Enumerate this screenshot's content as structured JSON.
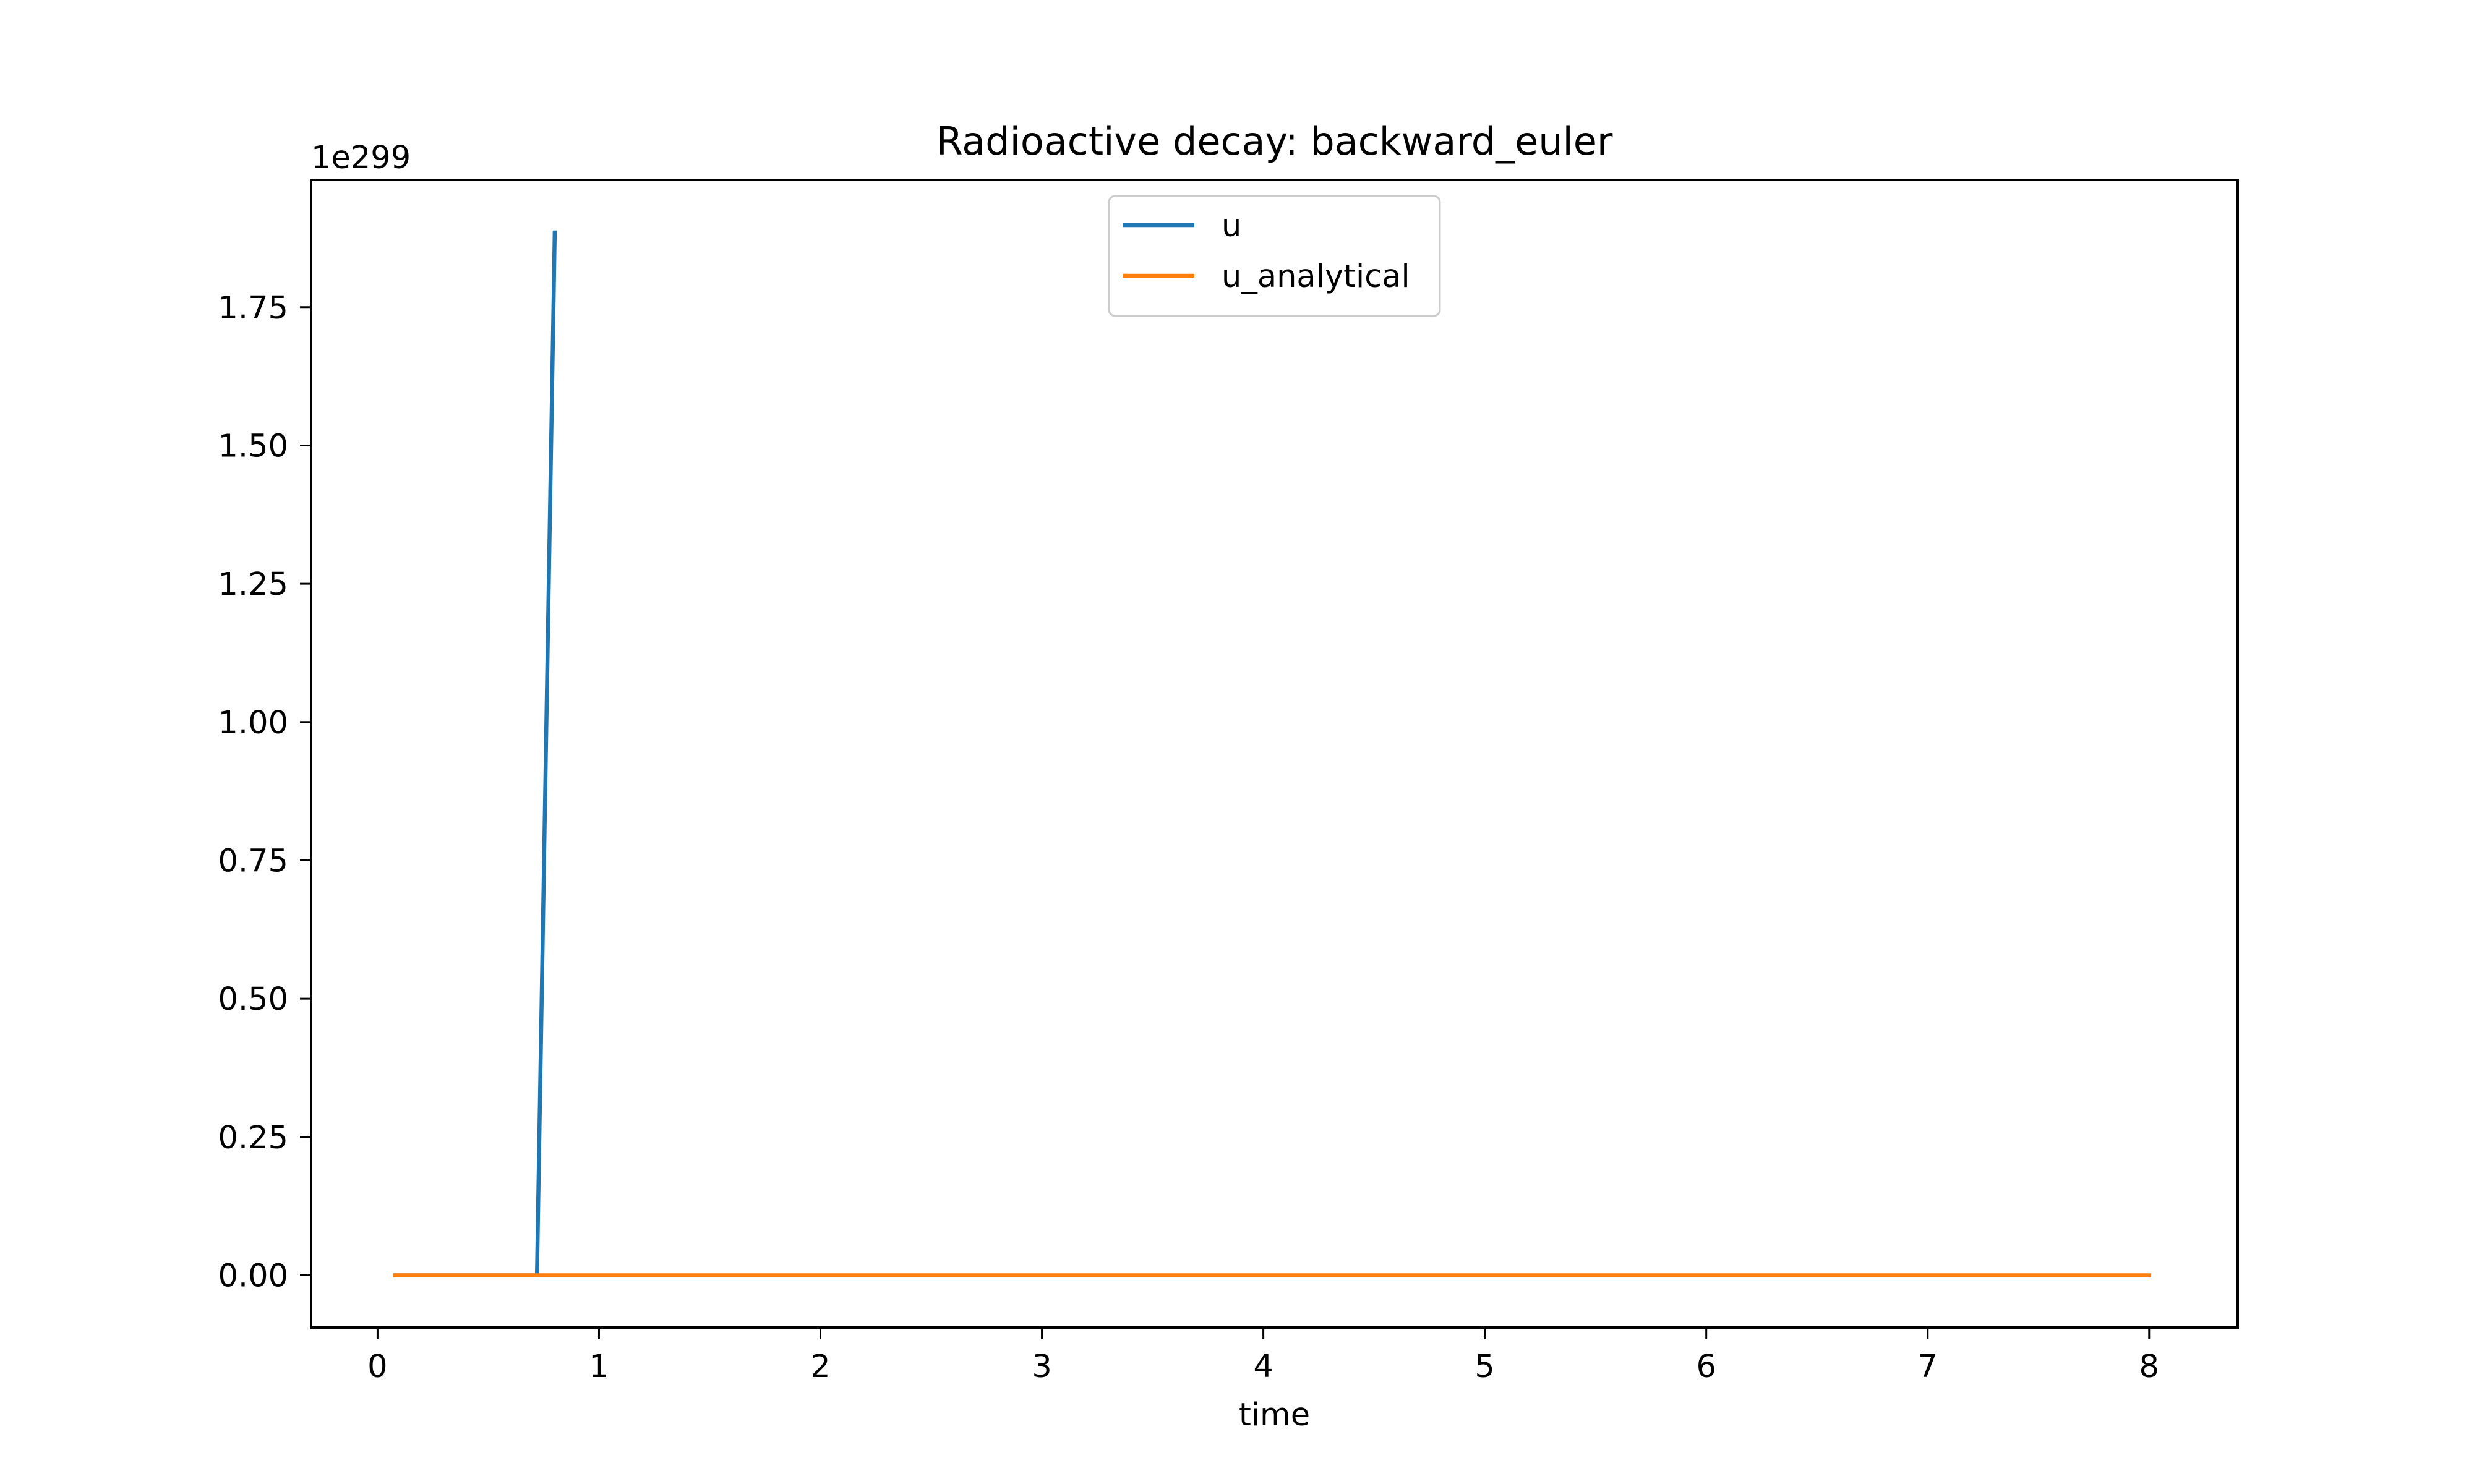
{
  "chart_data": {
    "type": "line",
    "title": "Radioactive decay: backward_euler",
    "xlabel": "time",
    "ylabel": "",
    "y_offset_text": "1e299",
    "y_scale_factor": 1e+299,
    "xlim": [
      -0.3,
      8.4
    ],
    "ylim": [
      -0.0945,
      1.98
    ],
    "x_ticks": [
      0,
      1,
      2,
      3,
      4,
      5,
      6,
      7,
      8
    ],
    "x_tick_labels": [
      "0",
      "1",
      "2",
      "3",
      "4",
      "5",
      "6",
      "7",
      "8"
    ],
    "y_ticks": [
      0,
      0.25,
      0.5,
      0.75,
      1.0,
      1.25,
      1.5,
      1.75
    ],
    "y_tick_labels": [
      "0.00",
      "0.25",
      "0.50",
      "0.75",
      "1.00",
      "1.25",
      "1.50",
      "1.75"
    ],
    "grid": false,
    "legend_position": "upper center",
    "series": [
      {
        "name": "u",
        "color": "#1f77b4",
        "x": [
          0.08,
          0.72,
          0.8
        ],
        "y": [
          0,
          0,
          1.885
        ]
      },
      {
        "name": "u_analytical",
        "color": "#ff7f0e",
        "x": [
          0.08,
          8.0
        ],
        "y": [
          0,
          0
        ]
      }
    ]
  }
}
